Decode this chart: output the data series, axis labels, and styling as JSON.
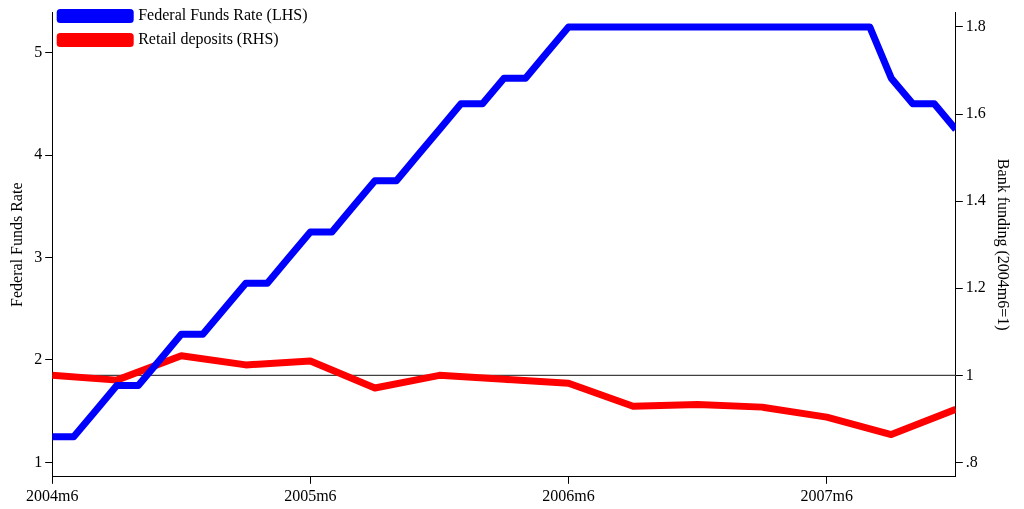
{
  "chart_data": {
    "type": "line",
    "ylabel": "Federal Funds Rate",
    "y2label": "Bank funding (2004m6=1)",
    "xlim": [
      "2004-06",
      "2007-12"
    ],
    "xticks": [
      {
        "value": "2004-06",
        "label": "2004m6"
      },
      {
        "value": "2005-06",
        "label": "2005m6"
      },
      {
        "value": "2006-06",
        "label": "2006m6"
      },
      {
        "value": "2007-06",
        "label": "2007m6"
      }
    ],
    "ylim": [
      0.86,
      5.39
    ],
    "yticks": [
      1,
      2,
      3,
      4,
      5
    ],
    "y2lim": [
      0.767,
      1.833
    ],
    "y2ticks": [
      {
        "value": 0.8,
        "label": ".8"
      },
      1,
      1.2,
      1.4,
      1.6,
      1.8
    ],
    "series": [
      {
        "name": "Federal Funds Rate (LHS)",
        "color": "#0000ff",
        "x": [
          "2004-06",
          "2004-07",
          "2004-08",
          "2004-09",
          "2004-10",
          "2004-11",
          "2004-12",
          "2005-01",
          "2005-02",
          "2005-03",
          "2005-04",
          "2005-05",
          "2005-06",
          "2005-07",
          "2005-08",
          "2005-09",
          "2005-10",
          "2005-11",
          "2005-12",
          "2006-01",
          "2006-02",
          "2006-03",
          "2006-04",
          "2006-05",
          "2006-06",
          "2006-07",
          "2006-08",
          "2006-09",
          "2006-10",
          "2006-11",
          "2006-12",
          "2007-01",
          "2007-02",
          "2007-03",
          "2007-04",
          "2007-05",
          "2007-06",
          "2007-07",
          "2007-08",
          "2007-09",
          "2007-10",
          "2007-11",
          "2007-12"
        ],
        "values": [
          1.25,
          1.25,
          1.5,
          1.75,
          1.75,
          2.0,
          2.25,
          2.25,
          2.5,
          2.75,
          2.75,
          3.0,
          3.25,
          3.25,
          3.5,
          3.75,
          3.75,
          4.0,
          4.25,
          4.5,
          4.5,
          4.75,
          4.75,
          5.0,
          5.25,
          5.25,
          5.25,
          5.25,
          5.25,
          5.25,
          5.25,
          5.25,
          5.25,
          5.25,
          5.25,
          5.25,
          5.25,
          5.25,
          5.25,
          4.75,
          4.5,
          4.5,
          4.25
        ]
      },
      {
        "name": "Retail deposits (RHS)",
        "color": "#ff0000",
        "axis": "y2",
        "x": [
          "2004-06",
          "2004-09",
          "2004-12",
          "2005-03",
          "2005-06",
          "2005-09",
          "2005-12",
          "2006-03",
          "2006-06",
          "2006-09",
          "2006-12",
          "2007-03",
          "2007-06",
          "2007-09",
          "2007-12"
        ],
        "values": [
          1.0,
          0.989,
          1.045,
          1.024,
          1.033,
          0.971,
          1.0,
          0.991,
          0.982,
          0.929,
          0.933,
          0.927,
          0.904,
          0.864,
          0.922
        ]
      }
    ],
    "ref_lines": [
      {
        "axis": "y2",
        "value": 1,
        "color": "#404040"
      }
    ],
    "legend": "top left",
    "grid": false,
    "marker": "none",
    "line_style": "solid"
  }
}
